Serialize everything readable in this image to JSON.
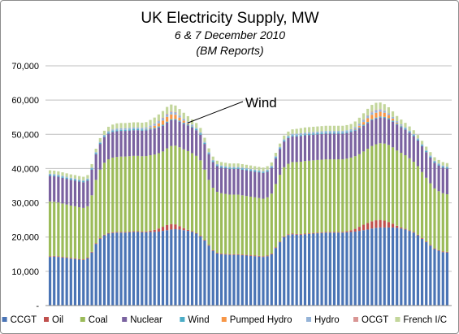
{
  "chart_data": {
    "type": "bar",
    "stacked": true,
    "title": "UK Electricity Supply, MW",
    "subtitle_lines": [
      "6 & 7 December 2010",
      "(BM Reports)"
    ],
    "xlabel": "",
    "ylabel": "",
    "ylim": [
      0,
      70000
    ],
    "yticks": [
      0,
      10000,
      20000,
      30000,
      40000,
      50000,
      60000,
      70000
    ],
    "ytick_labels": [
      "-",
      "10,000",
      "20,000",
      "30,000",
      "40,000",
      "50,000",
      "60,000",
      "70,000"
    ],
    "grid": true,
    "legend_position": "bottom",
    "annotation": {
      "text": "Wind",
      "series": "Wind"
    },
    "x": [
      1,
      2,
      3,
      4,
      5,
      6,
      7,
      8,
      9,
      10,
      11,
      12,
      13,
      14,
      15,
      16,
      17,
      18,
      19,
      20,
      21,
      22,
      23,
      24,
      25,
      26,
      27,
      28,
      29,
      30,
      31,
      32,
      33,
      34,
      35,
      36,
      37,
      38,
      39,
      40,
      41,
      42,
      43,
      44,
      45,
      46,
      47,
      48,
      49,
      50,
      51,
      52,
      53,
      54,
      55,
      56,
      57,
      58,
      59,
      60,
      61,
      62,
      63,
      64,
      65,
      66,
      67,
      68,
      69,
      70,
      71,
      72,
      73,
      74,
      75,
      76,
      77,
      78,
      79,
      80,
      81,
      82,
      83,
      84,
      85,
      86,
      87,
      88,
      89,
      90,
      91,
      92,
      93,
      94,
      95,
      96
    ],
    "series": [
      {
        "name": "CCGT",
        "color": "#4a74b5",
        "values": [
          14200,
          14300,
          14200,
          14000,
          13900,
          13700,
          13600,
          13400,
          13300,
          13800,
          15500,
          18000,
          19500,
          20500,
          21000,
          21200,
          21300,
          21300,
          21300,
          21400,
          21500,
          21500,
          21400,
          21400,
          21500,
          21500,
          21600,
          21800,
          22000,
          22200,
          22300,
          22200,
          22000,
          21800,
          21500,
          21000,
          20200,
          19000,
          17500,
          16000,
          15200,
          15000,
          14900,
          14800,
          14800,
          14800,
          14700,
          14600,
          14500,
          14400,
          14300,
          14200,
          14400,
          15000,
          16800,
          18500,
          20000,
          20600,
          20800,
          20700,
          20700,
          20800,
          20900,
          21000,
          21100,
          21200,
          21300,
          21300,
          21300,
          21300,
          21300,
          21400,
          21500,
          21600,
          21800,
          22000,
          22200,
          22500,
          22700,
          22800,
          22800,
          22800,
          22800,
          22700,
          22500,
          22200,
          21800,
          21300,
          20500,
          19500,
          18500,
          17500,
          16500,
          16000,
          15600,
          15500
        ]
      },
      {
        "name": "Oil",
        "color": "#c0504d",
        "values": [
          200,
          200,
          200,
          200,
          200,
          200,
          200,
          200,
          200,
          200,
          200,
          200,
          200,
          200,
          200,
          200,
          200,
          200,
          200,
          200,
          200,
          200,
          200,
          250,
          400,
          600,
          900,
          1200,
          1500,
          1600,
          1400,
          1000,
          600,
          300,
          200,
          200,
          200,
          200,
          200,
          200,
          200,
          200,
          200,
          200,
          200,
          200,
          200,
          200,
          200,
          200,
          200,
          200,
          200,
          200,
          200,
          200,
          200,
          200,
          200,
          200,
          200,
          200,
          200,
          200,
          200,
          200,
          200,
          200,
          200,
          200,
          200,
          300,
          500,
          800,
          1200,
          1600,
          1900,
          2100,
          2200,
          2200,
          2000,
          1600,
          1100,
          600,
          300,
          200,
          200,
          200,
          200,
          200,
          200,
          200,
          200,
          200,
          200,
          200
        ]
      },
      {
        "name": "Coal",
        "color": "#9bbb59",
        "values": [
          16000,
          15800,
          15700,
          15600,
          15400,
          15300,
          15200,
          15100,
          15000,
          15000,
          16500,
          18500,
          20000,
          21000,
          21500,
          21800,
          21900,
          22000,
          22000,
          22000,
          22000,
          22000,
          22000,
          22000,
          22000,
          22000,
          22000,
          22000,
          22400,
          22800,
          23000,
          23000,
          23000,
          23000,
          22800,
          22500,
          22000,
          20500,
          19000,
          18200,
          17800,
          17600,
          17500,
          17400,
          17400,
          17400,
          17300,
          17200,
          17100,
          17000,
          16900,
          16800,
          17000,
          17500,
          18500,
          19500,
          20200,
          20600,
          20900,
          21000,
          21100,
          21200,
          21200,
          21200,
          21200,
          21200,
          21200,
          21200,
          21200,
          21200,
          21200,
          21200,
          21200,
          21200,
          21200,
          21400,
          21700,
          22000,
          22200,
          22400,
          22500,
          22500,
          22300,
          22000,
          21800,
          21500,
          21000,
          20500,
          20000,
          19300,
          18600,
          18000,
          17500,
          17200,
          17000,
          16800
        ]
      },
      {
        "name": "Nuclear",
        "color": "#7a62a0",
        "values": [
          7500,
          7500,
          7500,
          7500,
          7500,
          7500,
          7500,
          7500,
          7500,
          7500,
          7500,
          7500,
          7500,
          7500,
          7500,
          7500,
          7500,
          7500,
          7500,
          7500,
          7500,
          7500,
          7500,
          7500,
          7500,
          7500,
          7500,
          7500,
          7500,
          7500,
          7500,
          7500,
          7500,
          7500,
          7500,
          7500,
          7500,
          7500,
          7500,
          7500,
          7500,
          7500,
          7500,
          7500,
          7500,
          7500,
          7500,
          7500,
          7500,
          7500,
          7500,
          7500,
          7500,
          7500,
          7500,
          7500,
          7500,
          7500,
          7500,
          7500,
          7500,
          7500,
          7500,
          7500,
          7500,
          7500,
          7500,
          7500,
          7500,
          7500,
          7500,
          7500,
          7500,
          7500,
          7500,
          7500,
          7500,
          7500,
          7500,
          7500,
          7500,
          7500,
          7500,
          7500,
          7500,
          7500,
          7500,
          7500,
          7500,
          7500,
          7500,
          7500,
          7500,
          7500,
          7500,
          7500
        ]
      },
      {
        "name": "Wind",
        "color": "#4bacc6",
        "values": [
          300,
          300,
          300,
          300,
          300,
          300,
          300,
          300,
          300,
          300,
          300,
          300,
          300,
          300,
          300,
          300,
          300,
          300,
          300,
          300,
          300,
          300,
          300,
          300,
          300,
          300,
          300,
          300,
          300,
          300,
          300,
          300,
          300,
          300,
          300,
          300,
          300,
          300,
          300,
          300,
          300,
          300,
          300,
          300,
          300,
          300,
          300,
          300,
          300,
          300,
          300,
          300,
          300,
          300,
          300,
          300,
          300,
          300,
          300,
          300,
          300,
          300,
          300,
          300,
          300,
          300,
          300,
          300,
          300,
          300,
          300,
          300,
          300,
          300,
          300,
          300,
          300,
          300,
          300,
          300,
          300,
          300,
          300,
          300,
          300,
          300,
          300,
          300,
          300,
          300,
          300,
          300,
          300,
          300,
          300,
          300
        ]
      },
      {
        "name": "Pumped Hydro",
        "color": "#f79646",
        "values": [
          0,
          0,
          0,
          0,
          0,
          0,
          0,
          0,
          0,
          0,
          0,
          0,
          0,
          0,
          0,
          0,
          0,
          0,
          0,
          0,
          0,
          0,
          0,
          100,
          300,
          600,
          900,
          1200,
          1400,
          1400,
          1200,
          900,
          600,
          300,
          100,
          0,
          0,
          0,
          0,
          0,
          0,
          0,
          0,
          0,
          0,
          0,
          0,
          0,
          0,
          0,
          0,
          0,
          0,
          0,
          0,
          0,
          0,
          0,
          0,
          0,
          0,
          0,
          0,
          0,
          0,
          0,
          0,
          0,
          0,
          0,
          0,
          0,
          0,
          200,
          500,
          800,
          1100,
          1300,
          1400,
          1400,
          1200,
          900,
          600,
          300,
          100,
          0,
          0,
          0,
          0,
          0,
          0,
          0,
          0,
          0,
          0,
          0
        ]
      },
      {
        "name": "Hydro",
        "color": "#95b3d7",
        "values": [
          300,
          300,
          300,
          300,
          300,
          300,
          300,
          300,
          300,
          300,
          300,
          300,
          300,
          350,
          400,
          450,
          500,
          500,
          500,
          500,
          500,
          500,
          500,
          500,
          550,
          600,
          650,
          700,
          700,
          700,
          650,
          600,
          550,
          500,
          450,
          400,
          350,
          300,
          300,
          300,
          300,
          300,
          300,
          300,
          300,
          300,
          300,
          300,
          300,
          300,
          300,
          300,
          300,
          300,
          300,
          300,
          350,
          400,
          450,
          500,
          500,
          500,
          500,
          500,
          500,
          500,
          500,
          500,
          500,
          500,
          500,
          500,
          500,
          550,
          600,
          650,
          700,
          700,
          700,
          650,
          600,
          550,
          500,
          450,
          400,
          350,
          300,
          300,
          300,
          300,
          300,
          300,
          300,
          300,
          300,
          300
        ]
      },
      {
        "name": "OCGT",
        "color": "#d99694",
        "values": [
          0,
          0,
          0,
          0,
          0,
          0,
          0,
          0,
          0,
          0,
          0,
          0,
          0,
          0,
          0,
          0,
          0,
          0,
          0,
          0,
          0,
          0,
          0,
          0,
          50,
          100,
          150,
          200,
          200,
          200,
          150,
          100,
          50,
          0,
          0,
          0,
          0,
          0,
          0,
          0,
          0,
          0,
          0,
          0,
          0,
          0,
          0,
          0,
          0,
          0,
          0,
          0,
          0,
          0,
          0,
          0,
          0,
          0,
          0,
          0,
          0,
          0,
          0,
          0,
          0,
          0,
          0,
          0,
          0,
          0,
          0,
          0,
          0,
          0,
          50,
          100,
          150,
          200,
          200,
          150,
          100,
          50,
          0,
          0,
          0,
          0,
          0,
          0,
          0,
          0,
          0,
          0,
          0,
          0,
          0,
          0
        ]
      },
      {
        "name": "French I/C",
        "color": "#c3d69b",
        "values": [
          1000,
          1000,
          1000,
          1000,
          1000,
          1000,
          1000,
          1000,
          1000,
          1000,
          1000,
          1000,
          1100,
          1200,
          1300,
          1400,
          1500,
          1500,
          1500,
          1500,
          1500,
          1500,
          1500,
          1500,
          1600,
          1700,
          1800,
          1900,
          2000,
          2000,
          1900,
          1800,
          1700,
          1600,
          1500,
          1400,
          1300,
          1200,
          1100,
          1000,
          1000,
          1000,
          1000,
          1000,
          1000,
          1000,
          1000,
          1000,
          1000,
          1000,
          1000,
          1000,
          1000,
          1000,
          1000,
          1000,
          1100,
          1200,
          1300,
          1400,
          1500,
          1500,
          1500,
          1500,
          1500,
          1500,
          1500,
          1500,
          1500,
          1500,
          1500,
          1500,
          1500,
          1600,
          1700,
          1800,
          1900,
          2000,
          2000,
          1900,
          1800,
          1700,
          1600,
          1500,
          1400,
          1300,
          1200,
          1100,
          1000,
          1000,
          1000,
          1000,
          1000,
          1000,
          1000,
          1000
        ]
      }
    ]
  }
}
